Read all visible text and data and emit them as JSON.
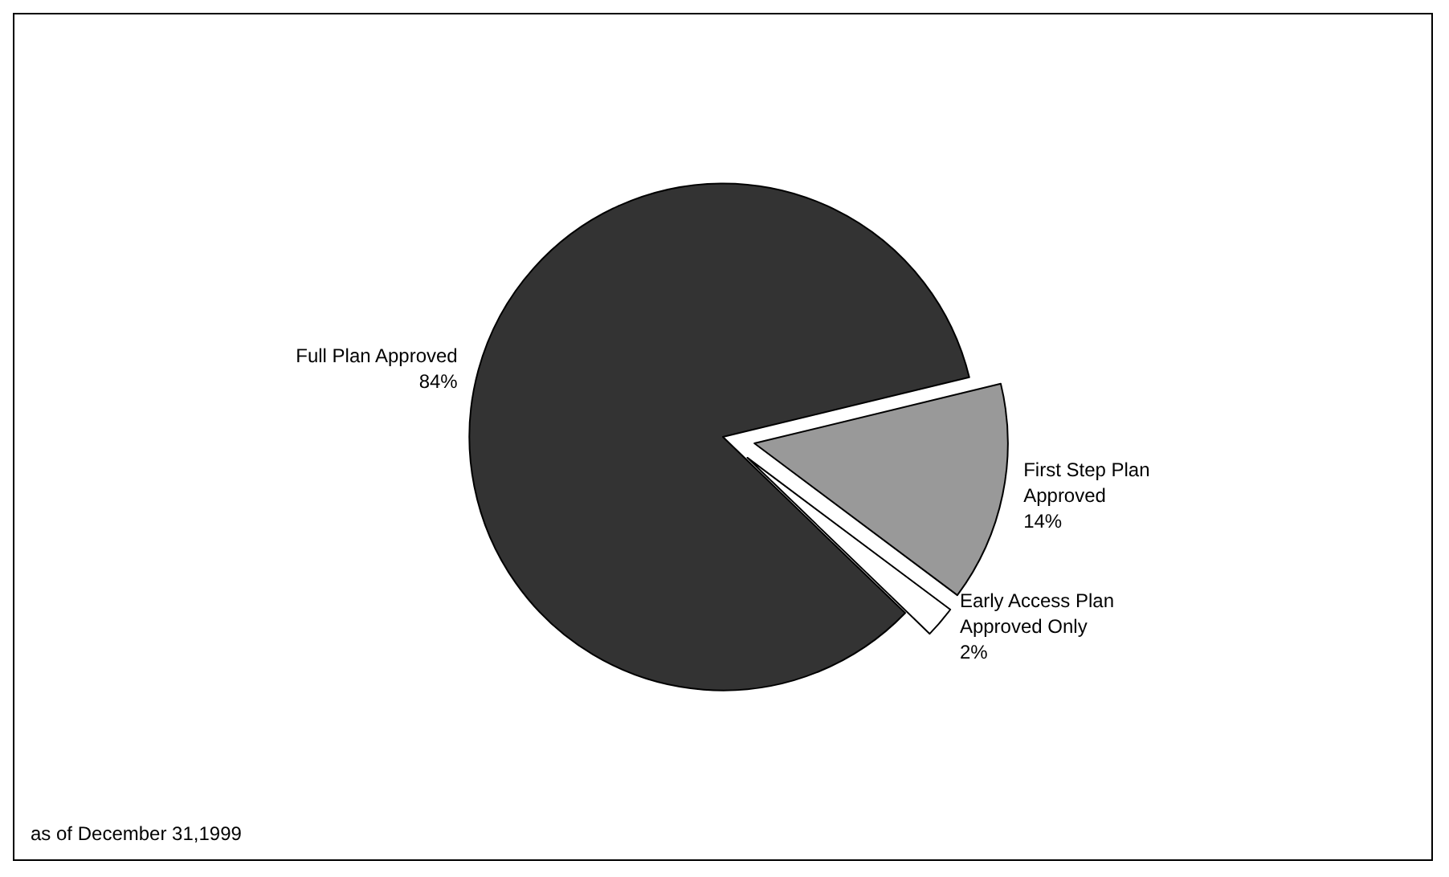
{
  "chart_data": {
    "type": "pie",
    "categories": [
      "Full Plan Approved",
      "First Step Plan Approved",
      "Early Access Plan Approved Only"
    ],
    "values": [
      84,
      14,
      2
    ],
    "value_labels": [
      "84%",
      "14%",
      "2%"
    ],
    "colors": [
      "#333333",
      "#999999",
      "#ffffff"
    ],
    "legend": false,
    "annotations": [
      "as of December 31,1999"
    ]
  }
}
